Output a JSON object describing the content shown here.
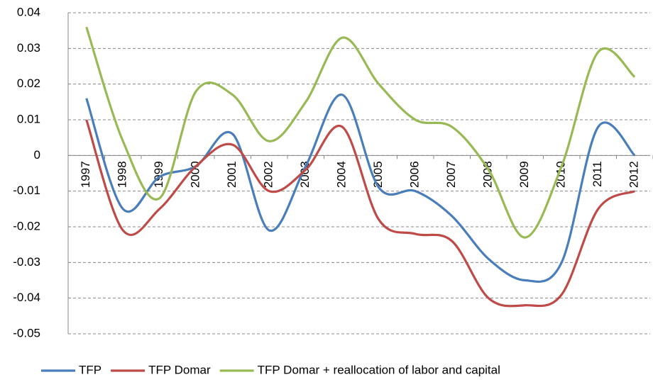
{
  "chart_data": {
    "type": "line",
    "categories": [
      "1997",
      "1998",
      "1999",
      "2000",
      "2001",
      "2002",
      "2003",
      "2004",
      "2005",
      "2006",
      "2007",
      "2008",
      "2009",
      "2010",
      "2011",
      "2012"
    ],
    "series": [
      {
        "name": "TFP",
        "color": "#4a7ebb",
        "values": [
          0.016,
          -0.015,
          -0.006,
          -0.003,
          0.006,
          -0.021,
          -0.003,
          0.017,
          -0.009,
          -0.01,
          -0.017,
          -0.029,
          -0.035,
          -0.03,
          0.008,
          0.0
        ]
      },
      {
        "name": "TFP Domar",
        "color": "#be4b48",
        "values": [
          0.01,
          -0.021,
          -0.015,
          -0.003,
          0.003,
          -0.01,
          -0.004,
          0.008,
          -0.018,
          -0.022,
          -0.024,
          -0.04,
          -0.042,
          -0.039,
          -0.015,
          -0.01
        ]
      },
      {
        "name": "TFP Domar + reallocation of labor and capital",
        "color": "#98b954",
        "values": [
          0.036,
          0.004,
          -0.012,
          0.018,
          0.017,
          0.004,
          0.015,
          0.033,
          0.02,
          0.01,
          0.008,
          -0.004,
          -0.023,
          -0.003,
          0.029,
          0.022
        ]
      }
    ],
    "ylim": [
      -0.05,
      0.04
    ],
    "yticks": [
      0.04,
      0.03,
      0.02,
      0.01,
      0,
      -0.01,
      -0.02,
      -0.03,
      -0.04,
      -0.05
    ],
    "grid": true
  }
}
